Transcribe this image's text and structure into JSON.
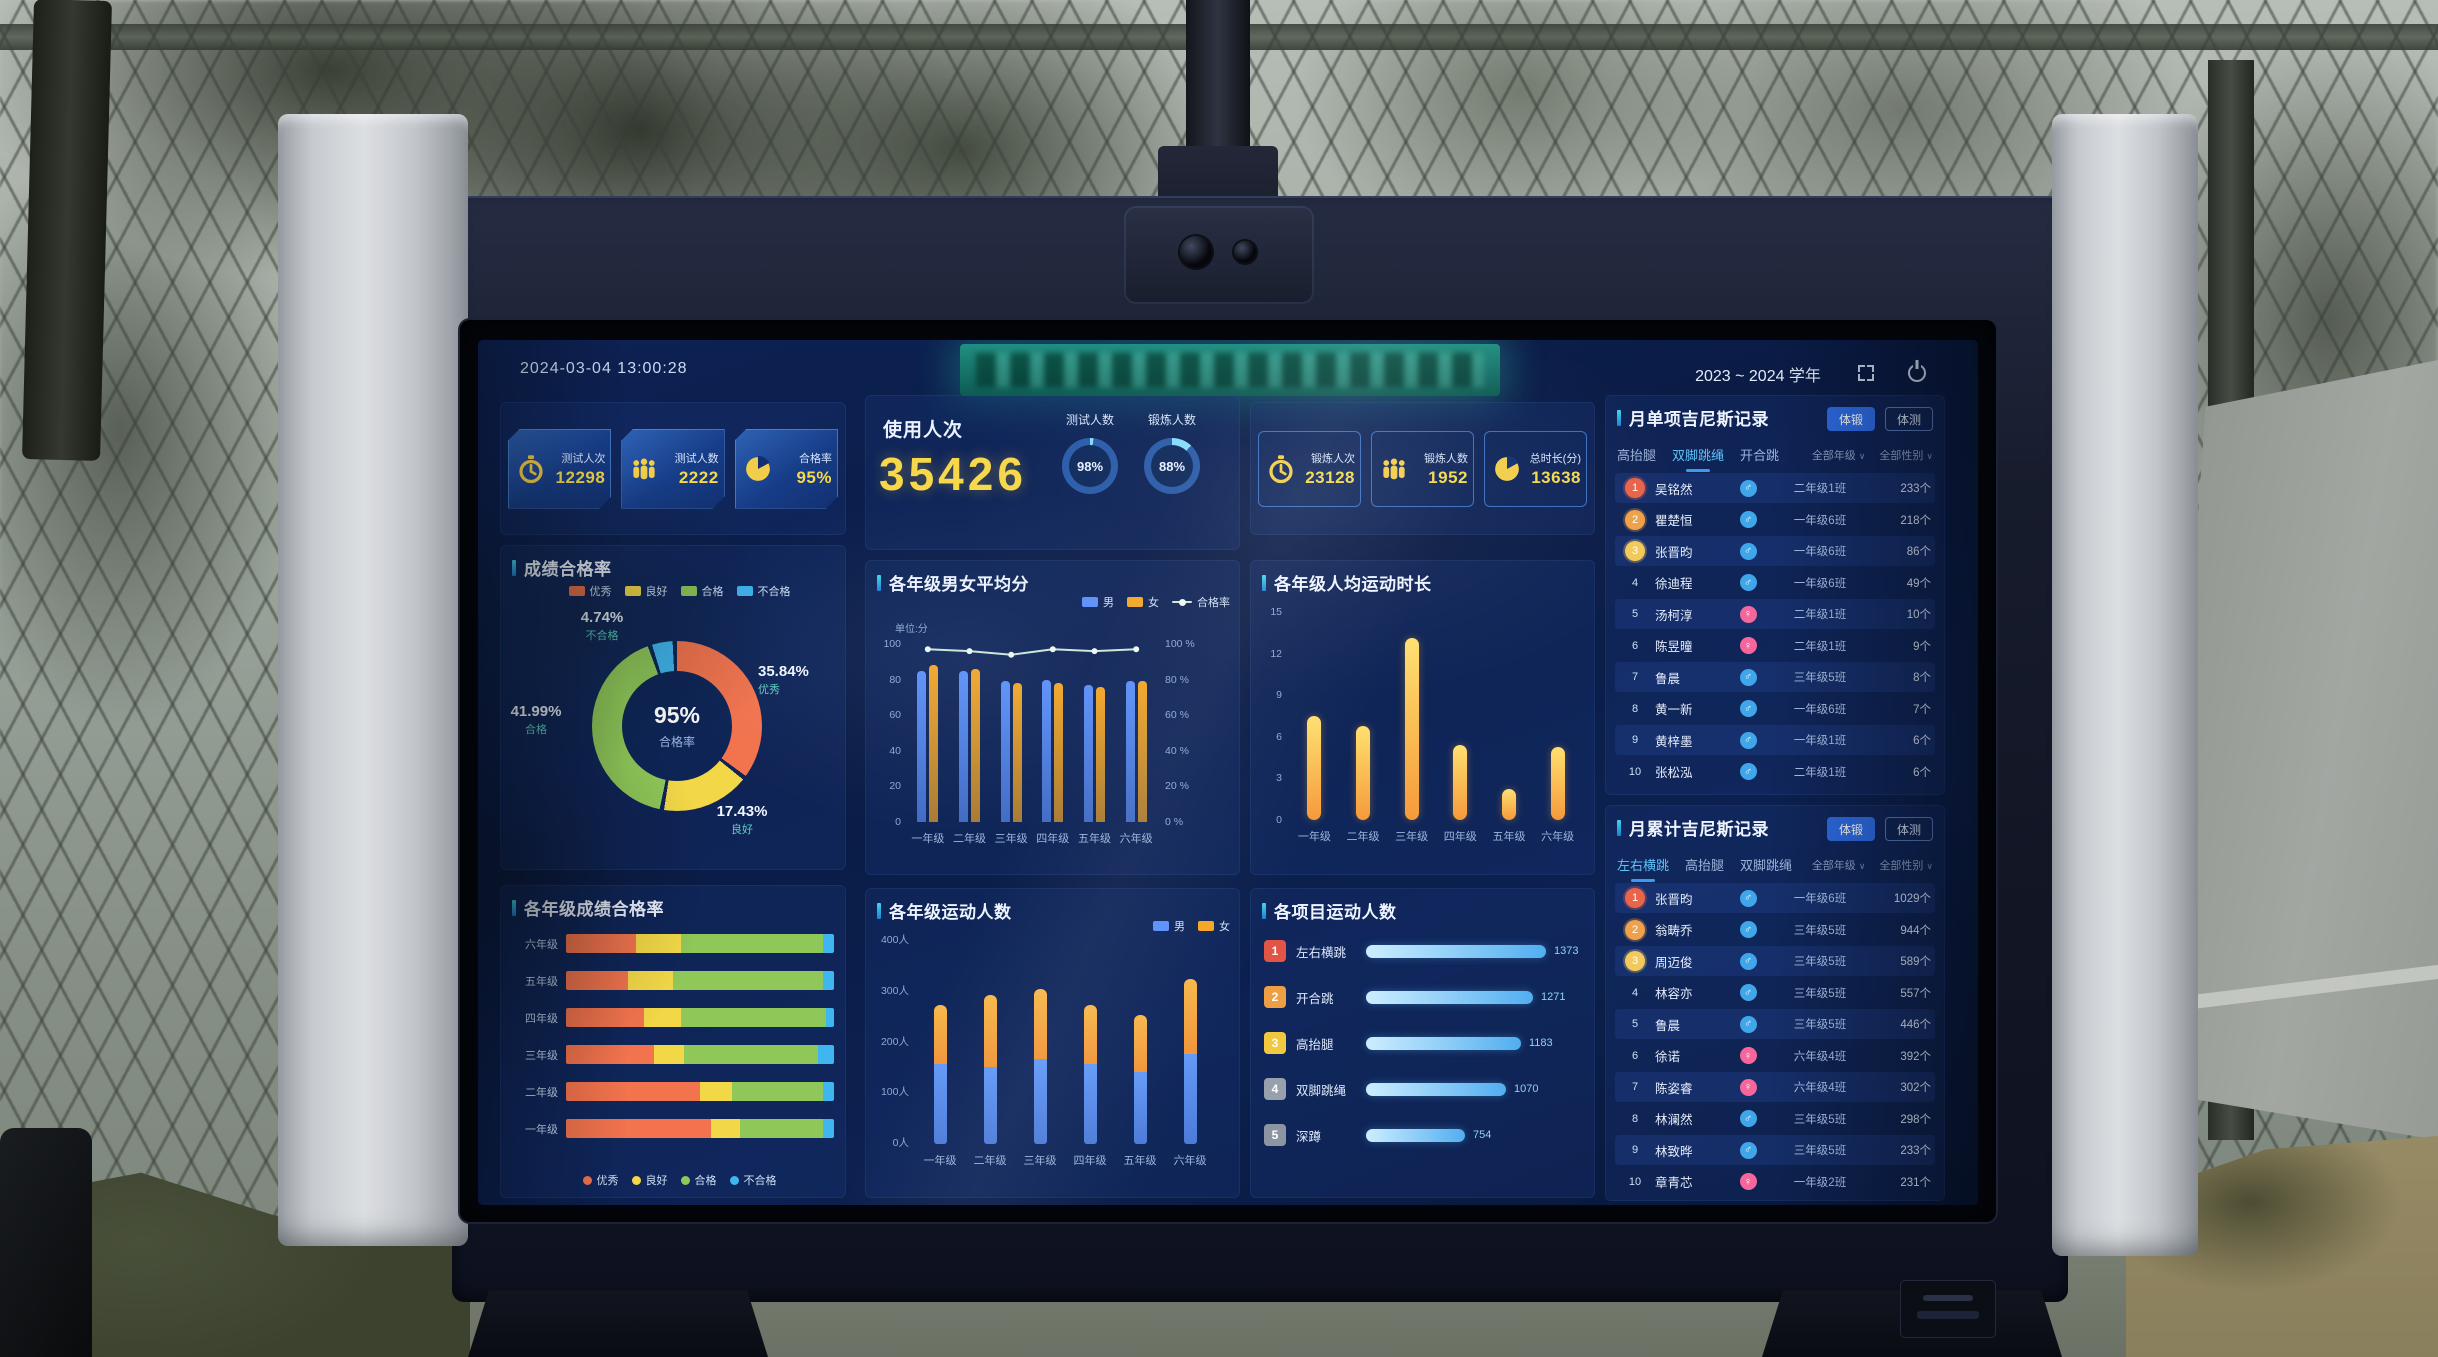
{
  "header": {
    "timestamp": "2024-03-04 13:00:28",
    "school_year": "2023 ~ 2024 学年"
  },
  "left_stats": {
    "cards": [
      {
        "icon": "stopwatch-icon",
        "label": "测试人次",
        "value": "12298"
      },
      {
        "icon": "people-icon",
        "label": "测试人数",
        "value": "2222"
      },
      {
        "icon": "pie-icon",
        "label": "合格率",
        "value": "95%"
      }
    ]
  },
  "usage": {
    "title": "使用人次",
    "value": "35426",
    "gauges": [
      {
        "label": "测试人数",
        "percent": 98,
        "text": "98%"
      },
      {
        "label": "锻炼人数",
        "percent": 88,
        "text": "88%"
      }
    ]
  },
  "right_stats": {
    "cards": [
      {
        "icon": "stopwatch-icon",
        "label": "锻炼人次",
        "value": "23128"
      },
      {
        "icon": "people-icon",
        "label": "锻炼人数",
        "value": "1952"
      },
      {
        "icon": "pie-icon",
        "label": "总时长(分)",
        "value": "13638"
      }
    ]
  },
  "chart_data": [
    {
      "id": "score_rate_donut",
      "type": "pie",
      "title": "成绩合格率",
      "center_value": "95%",
      "center_label": "合格率",
      "colors": [
        "#f2734d",
        "#f2d747",
        "#8fc758",
        "#3fb6f0"
      ],
      "slices": [
        {
          "name": "优秀",
          "pct": 35.84,
          "pct_label": "35.84%"
        },
        {
          "name": "良好",
          "pct": 17.43,
          "pct_label": "17.43%"
        },
        {
          "name": "合格",
          "pct": 41.99,
          "pct_label": "41.99%"
        },
        {
          "name": "不合格",
          "pct": 4.74,
          "pct_label": "4.74%"
        }
      ],
      "legend_items": [
        {
          "name": "优秀",
          "color": "#f2734d"
        },
        {
          "name": "良好",
          "color": "#f2d747"
        },
        {
          "name": "合格",
          "color": "#8fc758"
        },
        {
          "name": "不合格",
          "color": "#3fb6f0"
        }
      ]
    },
    {
      "id": "grade_pass_rate",
      "type": "bar",
      "orientation": "horizontal-stacked",
      "title": "各年级成绩合格率",
      "categories": [
        "六年级",
        "五年级",
        "四年级",
        "三年级",
        "二年级",
        "一年级"
      ],
      "series": [
        {
          "name": "优秀",
          "color": "#f2734d",
          "values": [
            26,
            23,
            29,
            33,
            50,
            54
          ]
        },
        {
          "name": "良好",
          "color": "#f2d747",
          "values": [
            17,
            17,
            14,
            11,
            12,
            11
          ]
        },
        {
          "name": "合格",
          "color": "#8fc758",
          "values": [
            53,
            56,
            54,
            50,
            34,
            31
          ]
        },
        {
          "name": "不合格",
          "color": "#3fb6f0",
          "values": [
            4,
            4,
            3,
            6,
            4,
            4
          ]
        }
      ],
      "unit": "%",
      "legend_items": [
        {
          "name": "优秀",
          "color": "#f2734d"
        },
        {
          "name": "良好",
          "color": "#f2d747"
        },
        {
          "name": "合格",
          "color": "#8fc758"
        },
        {
          "name": "不合格",
          "color": "#3fb6f0"
        }
      ]
    },
    {
      "id": "gender_avg_score",
      "type": "bar",
      "title": "各年级男女平均分",
      "unit_label": "单位:分",
      "categories": [
        "一年级",
        "二年级",
        "三年级",
        "四年级",
        "五年级",
        "六年级"
      ],
      "series": [
        {
          "name": "男",
          "color": "#5b8ff9",
          "values": [
            85,
            85,
            79,
            80,
            77,
            79
          ]
        },
        {
          "name": "女",
          "color": "#f5a623",
          "values": [
            88,
            86,
            78,
            78,
            76,
            79
          ]
        }
      ],
      "line": {
        "name": "合格率",
        "color": "#cfe8d8",
        "values": [
          97,
          96,
          94,
          97,
          96,
          97
        ]
      },
      "y_left": {
        "min": 0,
        "max": 100,
        "ticks": [
          "100",
          "80",
          "60",
          "40",
          "20",
          "0"
        ]
      },
      "y_right": {
        "ticks": [
          "100 %",
          "80 %",
          "60 %",
          "40 %",
          "20 %",
          "0 %"
        ]
      },
      "legend_items": [
        {
          "name": "男",
          "color": "#5b8ff9"
        },
        {
          "name": "女",
          "color": "#f5a623"
        },
        {
          "name": "合格率",
          "color": "#cfe8d8",
          "type": "line"
        }
      ]
    },
    {
      "id": "avg_exercise_minutes",
      "type": "bar",
      "title": "各年级人均运动时长",
      "categories": [
        "一年级",
        "二年级",
        "三年级",
        "四年级",
        "五年级",
        "六年级"
      ],
      "values": [
        7.5,
        6.8,
        13.1,
        5.4,
        2.2,
        5.3
      ],
      "ylim": [
        0,
        15
      ],
      "yticks": [
        "15",
        "12",
        "9",
        "6",
        "3",
        "0"
      ],
      "color": "#f5b04a"
    },
    {
      "id": "grade_sport_people",
      "type": "bar",
      "orientation": "vertical-stacked",
      "title": "各年级运动人数",
      "categories": [
        "一年级",
        "二年级",
        "三年级",
        "四年级",
        "五年级",
        "六年级"
      ],
      "series": [
        {
          "name": "男",
          "color": "#5b8ff9",
          "values": [
            155,
            150,
            165,
            155,
            140,
            175
          ]
        },
        {
          "name": "女",
          "color": "#f5a623",
          "values": [
            115,
            140,
            135,
            115,
            110,
            145
          ]
        }
      ],
      "ylim": [
        0,
        400
      ],
      "yticks": [
        "400人",
        "300人",
        "200人",
        "100人",
        "0人"
      ],
      "legend_items": [
        {
          "name": "男",
          "color": "#5b8ff9"
        },
        {
          "name": "女",
          "color": "#f5a623"
        }
      ]
    },
    {
      "id": "project_people",
      "type": "bar",
      "orientation": "horizontal-ranked",
      "title": "各项目运动人数",
      "max": 1373,
      "items": [
        {
          "rank": 1,
          "name": "左右横跳",
          "value": 1373
        },
        {
          "rank": 2,
          "name": "开合跳",
          "value": 1271
        },
        {
          "rank": 3,
          "name": "高抬腿",
          "value": 1183
        },
        {
          "rank": 4,
          "name": "双脚跳绳",
          "value": 1070
        },
        {
          "rank": 5,
          "name": "深蹲",
          "value": 754
        }
      ]
    }
  ],
  "guinness_single": {
    "title": "月单项吉尼斯记录",
    "buttons": [
      {
        "label": "体锻",
        "active": true
      },
      {
        "label": "体测",
        "active": false
      }
    ],
    "tabs": [
      {
        "label": "高抬腿",
        "active": false
      },
      {
        "label": "双脚跳绳",
        "active": true
      },
      {
        "label": "开合跳",
        "active": false
      }
    ],
    "filters": [
      "全部年级",
      "全部性别"
    ],
    "rows": [
      {
        "rank": 1,
        "name": "吴铭然",
        "gender": "male",
        "class": "二年级1班",
        "count": "233个"
      },
      {
        "rank": 2,
        "name": "瞿楚恒",
        "gender": "male",
        "class": "一年级6班",
        "count": "218个"
      },
      {
        "rank": 3,
        "name": "张晋昀",
        "gender": "male",
        "class": "一年级6班",
        "count": "86个"
      },
      {
        "rank": 4,
        "name": "徐迪程",
        "gender": "male",
        "class": "一年级6班",
        "count": "49个"
      },
      {
        "rank": 5,
        "name": "汤柯淳",
        "gender": "female",
        "class": "二年级1班",
        "count": "10个"
      },
      {
        "rank": 6,
        "name": "陈昱曈",
        "gender": "female",
        "class": "二年级1班",
        "count": "9个"
      },
      {
        "rank": 7,
        "name": "鲁晨",
        "gender": "male",
        "class": "三年级5班",
        "count": "8个"
      },
      {
        "rank": 8,
        "name": "黄一新",
        "gender": "male",
        "class": "一年级6班",
        "count": "7个"
      },
      {
        "rank": 9,
        "name": "黄梓墨",
        "gender": "male",
        "class": "一年级1班",
        "count": "6个"
      },
      {
        "rank": 10,
        "name": "张松泓",
        "gender": "male",
        "class": "二年级1班",
        "count": "6个"
      }
    ]
  },
  "guinness_total": {
    "title": "月累计吉尼斯记录",
    "buttons": [
      {
        "label": "体锻",
        "active": true
      },
      {
        "label": "体测",
        "active": false
      }
    ],
    "tabs": [
      {
        "label": "左右横跳",
        "active": true
      },
      {
        "label": "高抬腿",
        "active": false
      },
      {
        "label": "双脚跳绳",
        "active": false
      }
    ],
    "filters": [
      "全部年级",
      "全部性别"
    ],
    "rows": [
      {
        "rank": 1,
        "name": "张晋昀",
        "gender": "male",
        "class": "一年级6班",
        "count": "1029个"
      },
      {
        "rank": 2,
        "name": "翁畴乔",
        "gender": "male",
        "class": "三年级5班",
        "count": "944个"
      },
      {
        "rank": 3,
        "name": "周迈俊",
        "gender": "male",
        "class": "三年级5班",
        "count": "589个"
      },
      {
        "rank": 4,
        "name": "林容亦",
        "gender": "male",
        "class": "三年级5班",
        "count": "557个"
      },
      {
        "rank": 5,
        "name": "鲁晨",
        "gender": "male",
        "class": "三年级5班",
        "count": "446个"
      },
      {
        "rank": 6,
        "name": "徐诺",
        "gender": "female",
        "class": "六年级4班",
        "count": "392个"
      },
      {
        "rank": 7,
        "name": "陈姿睿",
        "gender": "female",
        "class": "六年级4班",
        "count": "302个"
      },
      {
        "rank": 8,
        "name": "林澜然",
        "gender": "male",
        "class": "三年级5班",
        "count": "298个"
      },
      {
        "rank": 9,
        "name": "林致晔",
        "gender": "male",
        "class": "三年级5班",
        "count": "233个"
      },
      {
        "rank": 10,
        "name": "章青芯",
        "gender": "female",
        "class": "一年级2班",
        "count": "231个"
      }
    ]
  }
}
